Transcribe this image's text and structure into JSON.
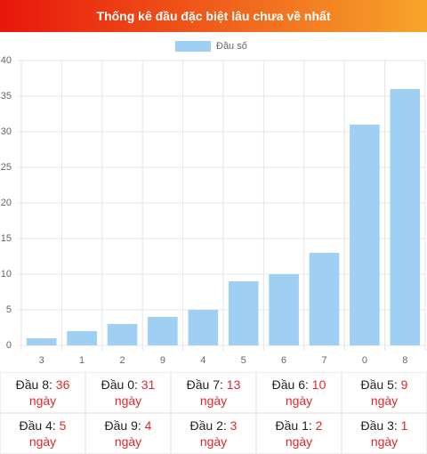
{
  "header": {
    "title": "Thống kê đầu đặc biệt lâu chưa về nhất"
  },
  "chart_data": {
    "type": "bar",
    "legend": "Đầu số",
    "color": "#9fcff3",
    "categories": [
      "3",
      "1",
      "2",
      "9",
      "4",
      "5",
      "6",
      "7",
      "0",
      "8"
    ],
    "values": [
      1,
      2,
      3,
      4,
      5,
      9,
      10,
      13,
      31,
      36
    ],
    "ylim": [
      0,
      40
    ],
    "yticks": [
      0,
      5,
      10,
      15,
      20,
      25,
      30,
      35,
      40
    ],
    "grid": true
  },
  "table": {
    "rows": [
      [
        {
          "label": "Đầu 8:",
          "value": 36,
          "unit": "ngày"
        },
        {
          "label": "Đầu 0:",
          "value": 31,
          "unit": "ngày"
        },
        {
          "label": "Đầu 7:",
          "value": 13,
          "unit": "ngày"
        },
        {
          "label": "Đầu 6:",
          "value": 10,
          "unit": "ngày"
        },
        {
          "label": "Đầu 5:",
          "value": 9,
          "unit": "ngày"
        }
      ],
      [
        {
          "label": "Đầu 4:",
          "value": 5,
          "unit": "ngày"
        },
        {
          "label": "Đầu 9:",
          "value": 4,
          "unit": "ngày"
        },
        {
          "label": "Đầu 2:",
          "value": 3,
          "unit": "ngày"
        },
        {
          "label": "Đầu 1:",
          "value": 2,
          "unit": "ngày"
        },
        {
          "label": "Đầu 3:",
          "value": 1,
          "unit": "ngày"
        }
      ]
    ]
  }
}
